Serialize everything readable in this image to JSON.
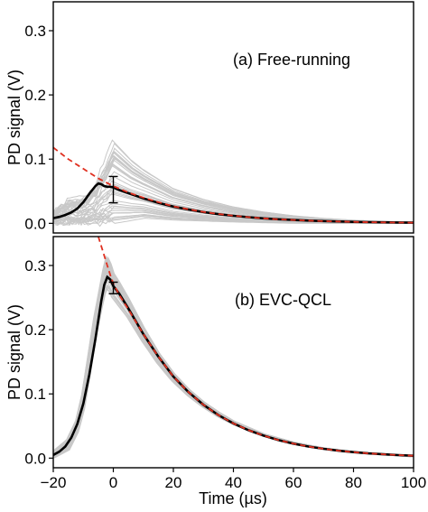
{
  "chart_data": [
    {
      "type": "line",
      "annotation": "(a) Free-running",
      "ylabel": "PD signal (V)",
      "xlim": [
        -20,
        100
      ],
      "ylim": [
        -0.015,
        0.345
      ],
      "yticks": [
        0.0,
        0.1,
        0.2,
        0.3
      ],
      "ytick_labels": [
        "0.0",
        "0.1",
        "0.2",
        "0.3"
      ],
      "grid": false,
      "series": [
        {
          "style": "gray-traces",
          "color": "#c8c8c8",
          "envelope_upper": [
            [
              -20,
              0.02
            ],
            [
              -15,
              0.035
            ],
            [
              -10,
              0.04
            ],
            [
              -6,
              0.06
            ],
            [
              -4,
              0.085
            ],
            [
              -2,
              0.105
            ],
            [
              -1,
              0.12
            ],
            [
              0,
              0.13
            ],
            [
              1,
              0.125
            ],
            [
              3,
              0.115
            ],
            [
              6,
              0.1
            ],
            [
              10,
              0.085
            ],
            [
              15,
              0.07
            ],
            [
              20,
              0.055
            ],
            [
              30,
              0.038
            ],
            [
              40,
              0.026
            ],
            [
              50,
              0.018
            ],
            [
              60,
              0.012
            ],
            [
              70,
              0.008
            ],
            [
              80,
              0.005
            ],
            [
              90,
              0.003
            ],
            [
              100,
              0.002
            ]
          ],
          "envelope_lower": [
            [
              -20,
              0.0
            ],
            [
              -15,
              0.0
            ],
            [
              -10,
              0.0
            ],
            [
              -5,
              0.0
            ],
            [
              0,
              0.0
            ],
            [
              10,
              0.008
            ],
            [
              20,
              0.005
            ],
            [
              40,
              0.002
            ],
            [
              60,
              0.0
            ],
            [
              80,
              0.0
            ],
            [
              100,
              0.0
            ]
          ]
        },
        {
          "style": "average",
          "color": "#000000",
          "points": [
            [
              -20,
              0.008
            ],
            [
              -18,
              0.01
            ],
            [
              -16,
              0.013
            ],
            [
              -14,
              0.017
            ],
            [
              -12,
              0.023
            ],
            [
              -10,
              0.033
            ],
            [
              -8,
              0.046
            ],
            [
              -6,
              0.058
            ],
            [
              -5,
              0.062
            ],
            [
              -4,
              0.061
            ],
            [
              -3,
              0.058
            ],
            [
              -2,
              0.057
            ],
            [
              -1,
              0.057
            ],
            [
              0,
              0.056
            ],
            [
              2,
              0.052
            ],
            [
              5,
              0.047
            ],
            [
              10,
              0.039
            ],
            [
              15,
              0.032
            ],
            [
              20,
              0.026
            ],
            [
              25,
              0.0215
            ],
            [
              30,
              0.0175
            ],
            [
              35,
              0.0143
            ],
            [
              40,
              0.0117
            ],
            [
              45,
              0.0096
            ],
            [
              50,
              0.0078
            ],
            [
              55,
              0.0064
            ],
            [
              60,
              0.0052
            ],
            [
              65,
              0.0043
            ],
            [
              70,
              0.0035
            ],
            [
              75,
              0.0029
            ],
            [
              80,
              0.0023
            ],
            [
              85,
              0.0019
            ],
            [
              90,
              0.0016
            ],
            [
              95,
              0.0013
            ],
            [
              100,
              0.001
            ]
          ]
        },
        {
          "style": "exponential-fit",
          "color": "#e03020",
          "dashed": true,
          "points": [
            [
              -20,
              0.118
            ],
            [
              -15,
              0.1
            ],
            [
              -10,
              0.085
            ],
            [
              -5,
              0.07
            ],
            [
              0,
              0.058
            ],
            [
              5,
              0.048
            ],
            [
              10,
              0.04
            ],
            [
              15,
              0.033
            ],
            [
              20,
              0.0265
            ],
            [
              25,
              0.0218
            ],
            [
              30,
              0.0178
            ],
            [
              35,
              0.0145
            ],
            [
              40,
              0.0118
            ],
            [
              45,
              0.0096
            ],
            [
              50,
              0.0078
            ],
            [
              55,
              0.0063
            ],
            [
              60,
              0.0052
            ],
            [
              65,
              0.0042
            ],
            [
              70,
              0.0034
            ],
            [
              75,
              0.0028
            ],
            [
              80,
              0.0023
            ],
            [
              85,
              0.0018
            ],
            [
              90,
              0.0015
            ],
            [
              95,
              0.0012
            ],
            [
              100,
              0.001
            ]
          ]
        }
      ],
      "error_bar": {
        "x": 0,
        "y": 0.052,
        "ylow": 0.032,
        "yhigh": 0.073
      }
    },
    {
      "type": "line",
      "annotation": "(b) EVC-QCL",
      "xlabel": "Time (µs)",
      "ylabel": "PD signal (V)",
      "xlim": [
        -20,
        100
      ],
      "ylim": [
        -0.015,
        0.345
      ],
      "xticks": [
        -20,
        0,
        20,
        40,
        60,
        80,
        100
      ],
      "xtick_labels": [
        "−20",
        "0",
        "20",
        "40",
        "60",
        "80",
        "100"
      ],
      "yticks": [
        0.0,
        0.1,
        0.2,
        0.3
      ],
      "ytick_labels": [
        "0.0",
        "0.1",
        "0.2",
        "0.3"
      ],
      "grid": false,
      "series": [
        {
          "style": "gray-traces",
          "color": "#c8c8c8",
          "envelope_upper": [
            [
              -20,
              0.01
            ],
            [
              -15,
              0.03
            ],
            [
              -12,
              0.06
            ],
            [
              -10,
              0.1
            ],
            [
              -8,
              0.16
            ],
            [
              -6,
              0.22
            ],
            [
              -4,
              0.27
            ],
            [
              -3,
              0.295
            ],
            [
              -2,
              0.315
            ],
            [
              -1,
              0.305
            ],
            [
              0,
              0.29
            ],
            [
              2,
              0.275
            ],
            [
              5,
              0.25
            ],
            [
              10,
              0.205
            ],
            [
              15,
              0.165
            ],
            [
              20,
              0.133
            ],
            [
              25,
              0.108
            ],
            [
              30,
              0.088
            ],
            [
              35,
              0.072
            ],
            [
              40,
              0.058
            ],
            [
              50,
              0.038
            ],
            [
              60,
              0.025
            ],
            [
              70,
              0.016
            ],
            [
              80,
              0.01
            ],
            [
              90,
              0.006
            ],
            [
              100,
              0.003
            ]
          ],
          "envelope_lower": [
            [
              -20,
              0.0
            ],
            [
              -15,
              0.012
            ],
            [
              -12,
              0.04
            ],
            [
              -10,
              0.075
            ],
            [
              -8,
              0.13
            ],
            [
              -6,
              0.19
            ],
            [
              -4,
              0.235
            ],
            [
              -3,
              0.255
            ],
            [
              -2,
              0.265
            ],
            [
              -1,
              0.26
            ],
            [
              0,
              0.25
            ],
            [
              2,
              0.238
            ],
            [
              5,
              0.22
            ],
            [
              10,
              0.182
            ],
            [
              15,
              0.148
            ],
            [
              20,
              0.12
            ],
            [
              25,
              0.098
            ],
            [
              30,
              0.08
            ],
            [
              35,
              0.065
            ],
            [
              40,
              0.053
            ],
            [
              50,
              0.035
            ],
            [
              60,
              0.022
            ],
            [
              70,
              0.014
            ],
            [
              80,
              0.009
            ],
            [
              90,
              0.005
            ],
            [
              100,
              0.002
            ]
          ]
        },
        {
          "style": "average",
          "color": "#000000",
          "points": [
            [
              -20,
              0.005
            ],
            [
              -18,
              0.01
            ],
            [
              -16,
              0.018
            ],
            [
              -14,
              0.032
            ],
            [
              -12,
              0.053
            ],
            [
              -10,
              0.085
            ],
            [
              -8,
              0.13
            ],
            [
              -6,
              0.185
            ],
            [
              -5,
              0.215
            ],
            [
              -4,
              0.245
            ],
            [
              -3,
              0.27
            ],
            [
              -2,
              0.282
            ],
            [
              -1,
              0.278
            ],
            [
              0,
              0.268
            ],
            [
              2,
              0.256
            ],
            [
              5,
              0.233
            ],
            [
              10,
              0.193
            ],
            [
              15,
              0.158
            ],
            [
              20,
              0.127
            ],
            [
              25,
              0.103
            ],
            [
              30,
              0.083
            ],
            [
              35,
              0.067
            ],
            [
              40,
              0.054
            ],
            [
              45,
              0.0435
            ],
            [
              50,
              0.035
            ],
            [
              55,
              0.028
            ],
            [
              60,
              0.0225
            ],
            [
              65,
              0.018
            ],
            [
              70,
              0.0145
            ],
            [
              75,
              0.0116
            ],
            [
              80,
              0.0093
            ],
            [
              85,
              0.0074
            ],
            [
              90,
              0.0059
            ],
            [
              95,
              0.0047
            ],
            [
              100,
              0.0037
            ]
          ]
        },
        {
          "style": "exponential-fit",
          "color": "#e03020",
          "dashed": true,
          "points": [
            [
              -5,
              0.345
            ],
            [
              -4,
              0.33
            ],
            [
              -3,
              0.315
            ],
            [
              -2,
              0.3
            ],
            [
              -1,
              0.285
            ],
            [
              0,
              0.272
            ],
            [
              2,
              0.254
            ],
            [
              5,
              0.232
            ],
            [
              10,
              0.193
            ],
            [
              15,
              0.158
            ],
            [
              20,
              0.127
            ],
            [
              25,
              0.103
            ],
            [
              30,
              0.083
            ],
            [
              35,
              0.067
            ],
            [
              40,
              0.054
            ],
            [
              45,
              0.0435
            ],
            [
              50,
              0.035
            ],
            [
              55,
              0.028
            ],
            [
              60,
              0.0225
            ],
            [
              65,
              0.018
            ],
            [
              70,
              0.0145
            ],
            [
              75,
              0.0116
            ],
            [
              80,
              0.0093
            ],
            [
              85,
              0.0074
            ],
            [
              90,
              0.0059
            ],
            [
              95,
              0.0047
            ],
            [
              100,
              0.0037
            ]
          ]
        }
      ],
      "error_bar": {
        "x": 0,
        "y": 0.265,
        "ylow": 0.256,
        "yhigh": 0.274
      }
    }
  ]
}
